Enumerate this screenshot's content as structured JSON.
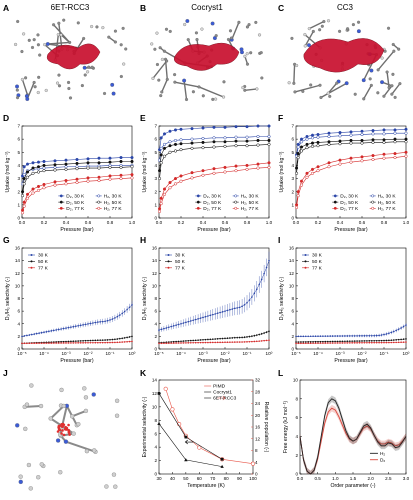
{
  "panel_letters": [
    "A",
    "B",
    "C",
    "D",
    "E",
    "F",
    "G",
    "H",
    "I",
    "J",
    "K",
    "L"
  ],
  "structure_titles": [
    "6ET-RCC3",
    "Cocryst1",
    "CC3"
  ],
  "colors": {
    "30K": "#2b46a8",
    "50K": "#111111",
    "77K": "#d42a2a",
    "cage_red": "#c8102e",
    "pimd": "#e8574a",
    "h2": "#222222",
    "d2": "#d9473c"
  },
  "chart_data": [
    {
      "panel": "D",
      "type": "line",
      "title": "",
      "xlabel": "Pressure (bar)",
      "ylabel": "Uptake (mol kg⁻¹)",
      "xlim": [
        0,
        1.0
      ],
      "ylim": [
        0,
        7
      ],
      "xticks": [
        "0.0",
        "0.2",
        "0.4",
        "0.6",
        "0.8",
        "1.0"
      ],
      "yticks": [
        "0",
        "1",
        "2",
        "3",
        "4",
        "5",
        "6",
        "7"
      ],
      "legend": "bottom-right",
      "x": [
        0.005,
        0.02,
        0.05,
        0.1,
        0.15,
        0.2,
        0.3,
        0.4,
        0.5,
        0.6,
        0.7,
        0.8,
        0.9,
        1.0
      ],
      "series": [
        {
          "name": "D₂, 30 K",
          "color": "30K",
          "filled": true,
          "values": [
            3.2,
            3.9,
            4.1,
            4.2,
            4.25,
            4.3,
            4.35,
            4.4,
            4.45,
            4.5,
            4.55,
            4.55,
            4.6,
            4.6
          ]
        },
        {
          "name": "H₂, 30 K",
          "color": "30K",
          "filled": false,
          "values": [
            2.6,
            3.3,
            3.6,
            3.7,
            3.75,
            3.8,
            3.85,
            3.9,
            3.9,
            3.95,
            3.95,
            4.0,
            4.0,
            4.0
          ]
        },
        {
          "name": "D₂, 50 K",
          "color": "50K",
          "filled": true,
          "values": [
            2.0,
            3.0,
            3.5,
            3.8,
            3.9,
            4.0,
            4.05,
            4.1,
            4.15,
            4.2,
            4.2,
            4.25,
            4.3,
            4.3
          ]
        },
        {
          "name": "H₂, 50 K",
          "color": "50K",
          "filled": false,
          "values": [
            1.7,
            2.6,
            3.1,
            3.4,
            3.5,
            3.6,
            3.65,
            3.7,
            3.75,
            3.8,
            3.8,
            3.85,
            3.85,
            3.9
          ]
        },
        {
          "name": "D₂, 77 K",
          "color": "77K",
          "filled": true,
          "values": [
            0.6,
            1.2,
            1.8,
            2.2,
            2.4,
            2.55,
            2.75,
            2.85,
            2.95,
            3.05,
            3.1,
            3.2,
            3.25,
            3.3
          ]
        },
        {
          "name": "H₂, 77 K",
          "color": "77K",
          "filled": false,
          "values": [
            0.4,
            0.9,
            1.5,
            1.9,
            2.1,
            2.3,
            2.5,
            2.6,
            2.7,
            2.8,
            2.85,
            2.95,
            3.0,
            3.05
          ]
        }
      ],
      "legend_order": [
        0,
        1,
        2,
        3,
        4,
        5
      ]
    },
    {
      "panel": "E",
      "type": "line",
      "title": "",
      "xlabel": "Pressure (bar)",
      "ylabel": "Uptake (mol kg⁻¹)",
      "xlim": [
        0,
        1.0
      ],
      "ylim": [
        0,
        7
      ],
      "xticks": [
        "0.0",
        "0.2",
        "0.4",
        "0.6",
        "0.8",
        "1.0"
      ],
      "yticks": [
        "0",
        "1",
        "2",
        "3",
        "4",
        "5",
        "6",
        "7"
      ],
      "legend": "bottom-right",
      "x": [
        0.005,
        0.02,
        0.05,
        0.1,
        0.15,
        0.2,
        0.3,
        0.4,
        0.5,
        0.6,
        0.7,
        0.8,
        0.9,
        1.0
      ],
      "series": [
        {
          "name": "D₂, 30 K",
          "color": "30K",
          "filled": true,
          "values": [
            5.2,
            6.1,
            6.4,
            6.6,
            6.7,
            6.75,
            6.8,
            6.85,
            6.9,
            6.9,
            6.95,
            6.95,
            7.0,
            7.0
          ]
        },
        {
          "name": "H₂, 30 K",
          "color": "30K",
          "filled": false,
          "values": [
            4.4,
            5.3,
            5.6,
            5.8,
            5.9,
            5.95,
            6.0,
            6.05,
            6.1,
            6.1,
            6.15,
            6.15,
            6.2,
            6.2
          ]
        },
        {
          "name": "D₂, 50 K",
          "color": "50K",
          "filled": true,
          "values": [
            3.6,
            4.8,
            5.3,
            5.5,
            5.6,
            5.65,
            5.7,
            5.75,
            5.8,
            5.8,
            5.85,
            5.85,
            5.9,
            5.9
          ]
        },
        {
          "name": "H₂, 50 K",
          "color": "50K",
          "filled": false,
          "values": [
            3.0,
            4.2,
            4.7,
            5.0,
            5.1,
            5.2,
            5.3,
            5.35,
            5.4,
            5.45,
            5.5,
            5.5,
            5.55,
            5.6
          ]
        },
        {
          "name": "D₂, 77 K",
          "color": "77K",
          "filled": true,
          "values": [
            0.7,
            1.5,
            2.2,
            2.7,
            3.0,
            3.2,
            3.45,
            3.6,
            3.75,
            3.85,
            3.95,
            4.0,
            4.1,
            4.2
          ]
        },
        {
          "name": "H₂, 77 K",
          "color": "77K",
          "filled": false,
          "values": [
            0.5,
            1.1,
            1.8,
            2.3,
            2.6,
            2.8,
            3.05,
            3.25,
            3.4,
            3.5,
            3.6,
            3.7,
            3.8,
            3.85
          ]
        }
      ],
      "legend_order": [
        0,
        1,
        2,
        3,
        4,
        5
      ]
    },
    {
      "panel": "F",
      "type": "line",
      "title": "",
      "xlabel": "Pressure (bar)",
      "ylabel": "Uptake (mol kg⁻¹)",
      "xlim": [
        0,
        1.0
      ],
      "ylim": [
        0,
        7
      ],
      "xticks": [
        "0.0",
        "0.2",
        "0.4",
        "0.6",
        "0.8",
        "1.0"
      ],
      "yticks": [
        "0",
        "1",
        "2",
        "3",
        "4",
        "5",
        "6",
        "7"
      ],
      "legend": "bottom-right",
      "x": [
        0.005,
        0.02,
        0.05,
        0.1,
        0.15,
        0.2,
        0.3,
        0.4,
        0.5,
        0.6,
        0.7,
        0.8,
        0.9,
        1.0
      ],
      "series": [
        {
          "name": "D₂, 30 K",
          "color": "30K",
          "filled": true,
          "values": [
            4.8,
            5.6,
            6.0,
            6.2,
            6.3,
            6.35,
            6.45,
            6.5,
            6.55,
            6.6,
            6.65,
            6.7,
            6.7,
            6.75
          ]
        },
        {
          "name": "H₂, 30 K",
          "color": "30K",
          "filled": false,
          "values": [
            4.7,
            5.4,
            5.8,
            6.0,
            6.1,
            6.15,
            6.2,
            6.25,
            6.3,
            6.35,
            6.4,
            6.4,
            6.45,
            6.45
          ]
        },
        {
          "name": "D₂, 50 K",
          "color": "50K",
          "filled": true,
          "values": [
            3.8,
            4.9,
            5.4,
            5.6,
            5.7,
            5.75,
            5.8,
            5.85,
            5.9,
            5.9,
            5.95,
            5.95,
            6.0,
            6.0
          ]
        },
        {
          "name": "H₂, 50 K",
          "color": "50K",
          "filled": false,
          "values": [
            3.4,
            4.6,
            5.1,
            5.35,
            5.45,
            5.5,
            5.6,
            5.65,
            5.7,
            5.7,
            5.75,
            5.75,
            5.8,
            5.8
          ]
        },
        {
          "name": "D₂, 77 K",
          "color": "77K",
          "filled": true,
          "values": [
            1.0,
            2.0,
            2.8,
            3.4,
            3.7,
            3.9,
            4.2,
            4.4,
            4.55,
            4.65,
            4.75,
            4.85,
            4.9,
            5.0
          ]
        },
        {
          "name": "H₂, 77 K",
          "color": "77K",
          "filled": false,
          "values": [
            0.8,
            1.7,
            2.5,
            3.1,
            3.4,
            3.6,
            3.9,
            4.1,
            4.25,
            4.35,
            4.45,
            4.55,
            4.6,
            4.7
          ]
        }
      ],
      "legend_order": [
        0,
        1,
        2,
        3,
        4,
        5
      ]
    },
    {
      "panel": "G",
      "type": "line",
      "title": "",
      "xlabel": "Pressure (bar)",
      "ylabel": "D₂/H₂ selectivity (-)",
      "xscale": "log",
      "xlim": [
        1e-05,
        1
      ],
      "ylim": [
        0,
        16
      ],
      "xticks": [
        "10⁻⁵",
        "10⁻⁴",
        "10⁻³",
        "10⁻²",
        "10⁻¹",
        "10⁰"
      ],
      "yticks": [
        "0",
        "2",
        "4",
        "6",
        "8",
        "10",
        "12",
        "14",
        "16"
      ],
      "legend": "top-left",
      "series": [
        {
          "name": "30 K",
          "color": "30K",
          "start": 2.0,
          "mid": 4.3,
          "end": 7.0,
          "err": 0.35
        },
        {
          "name": "50 K",
          "color": "50K",
          "start": 0.9,
          "mid": 1.4,
          "end": 2.0,
          "err": 0.1
        },
        {
          "name": "77 K",
          "color": "77K",
          "start": 0.9,
          "mid": 1.0,
          "end": 1.2,
          "err": 0.05
        }
      ]
    },
    {
      "panel": "H",
      "type": "line",
      "title": "",
      "xlabel": "Pressure (bar)",
      "ylabel": "D₂/H₂ selectivity (-)",
      "xscale": "log",
      "xlim": [
        1e-05,
        1
      ],
      "ylim": [
        0,
        16
      ],
      "xticks": [
        "10⁻⁵",
        "10⁻⁴",
        "10⁻³",
        "10⁻²",
        "10⁻¹",
        "10⁰"
      ],
      "yticks": [
        "0",
        "2",
        "4",
        "6",
        "8",
        "10",
        "12",
        "14",
        "16"
      ],
      "legend": "top-left",
      "series": [
        {
          "name": "30 K",
          "color": "30K",
          "start": 3.0,
          "mid": 6.5,
          "end": 14.0,
          "err": 0.9
        },
        {
          "name": "50 K",
          "color": "50K",
          "start": 1.0,
          "mid": 1.8,
          "end": 2.8,
          "err": 0.12
        },
        {
          "name": "77 K",
          "color": "77K",
          "start": 0.9,
          "mid": 1.1,
          "end": 1.4,
          "err": 0.05
        }
      ]
    },
    {
      "panel": "I",
      "type": "line",
      "title": "",
      "xlabel": "Pressure (bar)",
      "ylabel": "D₂/H₂ selectivity (-)",
      "xscale": "log",
      "xlim": [
        1e-05,
        1
      ],
      "ylim": [
        0,
        16
      ],
      "xticks": [
        "10⁻⁵",
        "10⁻⁴",
        "10⁻³",
        "10⁻²",
        "10⁻¹",
        "10⁰"
      ],
      "yticks": [
        "0",
        "2",
        "4",
        "6",
        "8",
        "10",
        "12",
        "14",
        "16"
      ],
      "legend": "top-left",
      "series": [
        {
          "name": "30 K",
          "color": "30K",
          "start": 2.0,
          "mid": 2.1,
          "end": 3.8,
          "err": 0.2
        },
        {
          "name": "50 K",
          "color": "50K",
          "start": 1.1,
          "mid": 1.3,
          "end": 1.6,
          "err": 0.08
        },
        {
          "name": "77 K",
          "color": "77K",
          "start": 0.9,
          "mid": 1.0,
          "end": 1.1,
          "err": 0.04
        }
      ]
    },
    {
      "panel": "K",
      "type": "line",
      "title": "",
      "xlabel": "Temperature (K)",
      "ylabel": "Experimental selectivity (-)",
      "ylabel_right": "Relative population (-)",
      "xlim": [
        30,
        100
      ],
      "ylim": [
        0,
        14
      ],
      "ylim_right": [
        0,
        32
      ],
      "xticks": [
        "30",
        "40",
        "50",
        "60",
        "70",
        "80",
        "90",
        "100"
      ],
      "yticks": [
        "0",
        "2",
        "4",
        "6",
        "8",
        "10",
        "12",
        "14"
      ],
      "yticks_right": [
        "0",
        "4",
        "8",
        "12",
        "16",
        "20",
        "24",
        "28",
        "32"
      ],
      "legend": "top-right",
      "series": [
        {
          "name": "PIMD",
          "color": "pimd",
          "marker": "open-circle",
          "axis": "right",
          "x": [
            35,
            40,
            45,
            50,
            60,
            77,
            100
          ],
          "values": [
            29,
            22,
            17,
            13,
            9,
            5,
            3.5
          ]
        },
        {
          "name": "Cocryst1",
          "color": "50K",
          "marker": "square",
          "axis": "left",
          "x": [
            30,
            50,
            77
          ],
          "values": [
            12,
            5.5,
            2.2
          ]
        },
        {
          "name": "6ET-RCC3",
          "color": "50K",
          "marker": "triangle",
          "axis": "left",
          "x": [
            30,
            50,
            77
          ],
          "values": [
            7.5,
            2.1,
            1.1
          ]
        }
      ]
    },
    {
      "panel": "L",
      "type": "line",
      "title": "",
      "xlabel": "Order parameter (-)",
      "ylabel": "Free energy (kJ mol⁻¹)",
      "xlim": [
        0,
        3.0
      ],
      "ylim": [
        0,
        10
      ],
      "xticks": [
        "0.0",
        "0.5",
        "1.0",
        "1.5",
        "2.0",
        "2.5",
        "3.0"
      ],
      "yticks": [
        "0",
        "2",
        "4",
        "6",
        "8",
        "10"
      ],
      "legend": "bottom-right",
      "x": [
        0.0,
        0.1,
        0.2,
        0.3,
        0.4,
        0.5,
        0.6,
        0.7,
        0.8,
        0.9,
        1.0,
        1.1,
        1.2,
        1.3,
        1.4,
        1.5,
        1.6,
        1.7,
        1.8,
        1.9,
        2.0,
        2.1,
        2.2,
        2.3,
        2.4,
        2.5,
        2.6,
        2.7,
        2.8,
        2.9,
        3.0
      ],
      "series": [
        {
          "name": "H₂",
          "color": "h2",
          "values": [
            4.0,
            1.5,
            0.3,
            0.0,
            0.4,
            1.8,
            4.0,
            6.2,
            7.6,
            8.0,
            7.8,
            7.0,
            5.8,
            4.6,
            3.8,
            3.5,
            3.7,
            4.4,
            5.1,
            5.3,
            4.9,
            4.1,
            3.4,
            3.0,
            3.0,
            3.3,
            3.2,
            2.8,
            2.9,
            3.4,
            4.0
          ]
        },
        {
          "name": "D₂",
          "color": "d2",
          "values": [
            4.0,
            1.5,
            0.3,
            0.0,
            0.4,
            1.6,
            3.5,
            5.4,
            6.6,
            7.0,
            6.8,
            6.1,
            5.2,
            4.3,
            3.7,
            3.5,
            3.7,
            4.3,
            4.9,
            5.1,
            4.8,
            4.1,
            3.5,
            3.2,
            3.2,
            3.4,
            3.3,
            3.0,
            3.1,
            3.5,
            4.0
          ]
        }
      ]
    }
  ]
}
